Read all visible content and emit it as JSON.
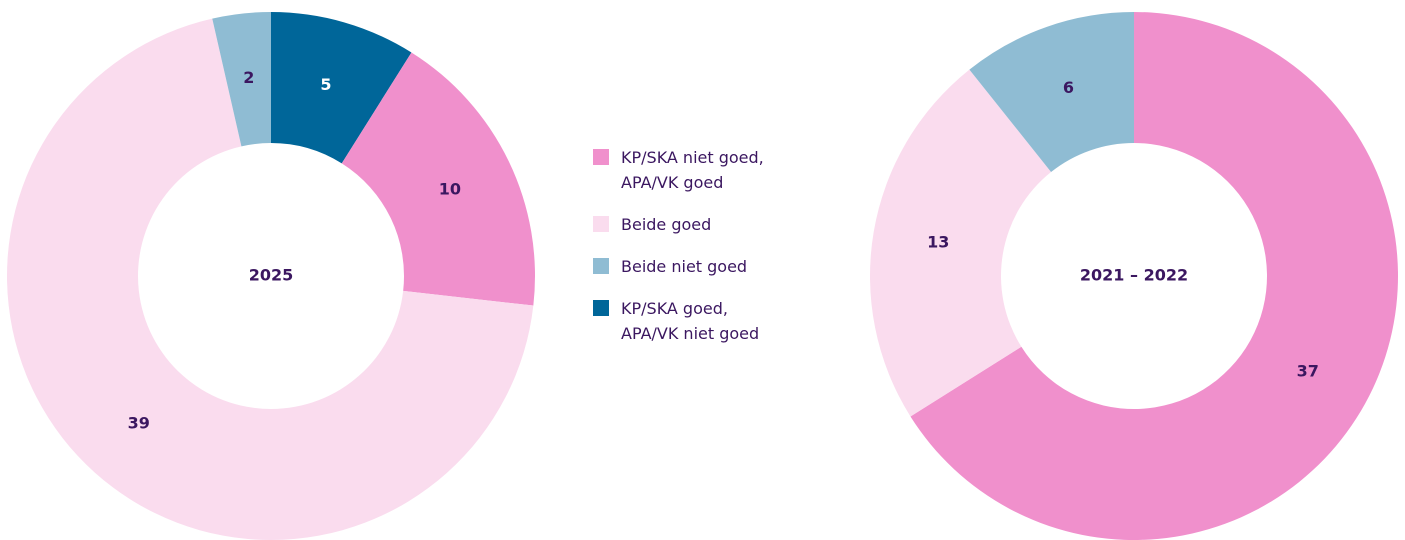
{
  "chart_data": [
    {
      "type": "pie",
      "center_label": "2025",
      "values": [
        5,
        10,
        39,
        2
      ],
      "colors": [
        "#006699",
        "#f090cc",
        "#fadcee",
        "#8fbcd3"
      ]
    },
    {
      "type": "pie",
      "center_label": "2021 – 2022",
      "values": [
        37,
        13,
        6
      ],
      "colors": [
        "#f090cc",
        "#fadcee",
        "#8fbcd3"
      ]
    }
  ],
  "legend": [
    {
      "name": "KP/SKA niet goed, APA/VK goed",
      "color": "#f090cc"
    },
    {
      "name": "Beide goed",
      "color": "#fadcee"
    },
    {
      "name": "Beide niet goed",
      "color": "#8fbcd3"
    },
    {
      "name": "KP/SKA goed, APA/VK niet goed",
      "color": "#006699"
    }
  ]
}
